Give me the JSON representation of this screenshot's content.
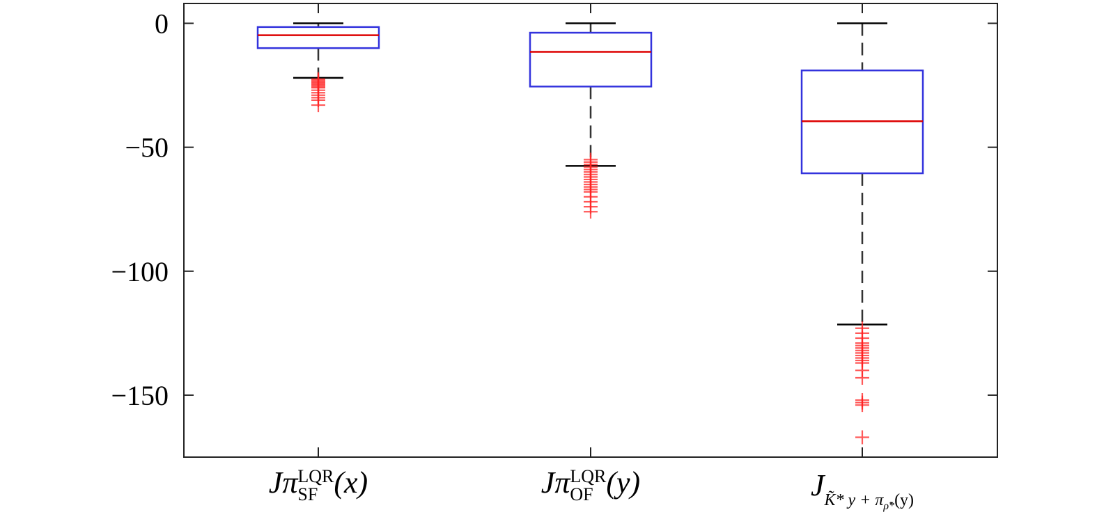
{
  "chart_data": {
    "type": "box",
    "title": "",
    "xlabel": "",
    "ylabel": "",
    "ylim": [
      -175,
      8
    ],
    "yticks": [
      0,
      -50,
      -100,
      -150
    ],
    "ytick_labels": [
      "0",
      "−50",
      "−100",
      "−150"
    ],
    "colors": {
      "box": "#3333dd",
      "median": "#dd0000",
      "outlier": "#ff2222",
      "whisker": "#333333",
      "cap": "#000000"
    },
    "categories": [
      {
        "base": "J",
        "pi": "π",
        "sup": "LQR",
        "sub": "SF",
        "arg": "(x)"
      },
      {
        "base": "J",
        "pi": "π",
        "sup": "LQR",
        "sub": "OF",
        "arg": "(y)"
      },
      {
        "base": "J",
        "sub_main": "K̃* y + π",
        "sub_sub": "ρ̃*",
        "sub_tail": "(y)"
      }
    ],
    "boxes": [
      {
        "whisker_high": 0,
        "q3": -1.5,
        "median": -4.8,
        "q1": -10,
        "whisker_low": -22,
        "outliers": [
          -22.5,
          -23,
          -23.5,
          -24,
          -24.5,
          -25,
          -25.5,
          -26,
          -27,
          -28,
          -29,
          -30,
          -31,
          -33
        ]
      },
      {
        "whisker_high": 0,
        "q3": -3.8,
        "median": -11.5,
        "q1": -25.5,
        "whisker_low": -57.5,
        "outliers": [
          -55,
          -56,
          -57,
          -58,
          -59,
          -60,
          -61,
          -62,
          -63,
          -64,
          -65,
          -66,
          -67,
          -68,
          -70,
          -72,
          -74,
          -76
        ]
      },
      {
        "whisker_high": 0,
        "q3": -19,
        "median": -39.5,
        "q1": -60.5,
        "whisker_low": -121.5,
        "outliers": [
          -123,
          -125,
          -127,
          -129,
          -130,
          -131,
          -132,
          -133,
          -134,
          -135,
          -136,
          -137,
          -140,
          -143,
          -152,
          -153,
          -154,
          -167
        ]
      }
    ]
  }
}
